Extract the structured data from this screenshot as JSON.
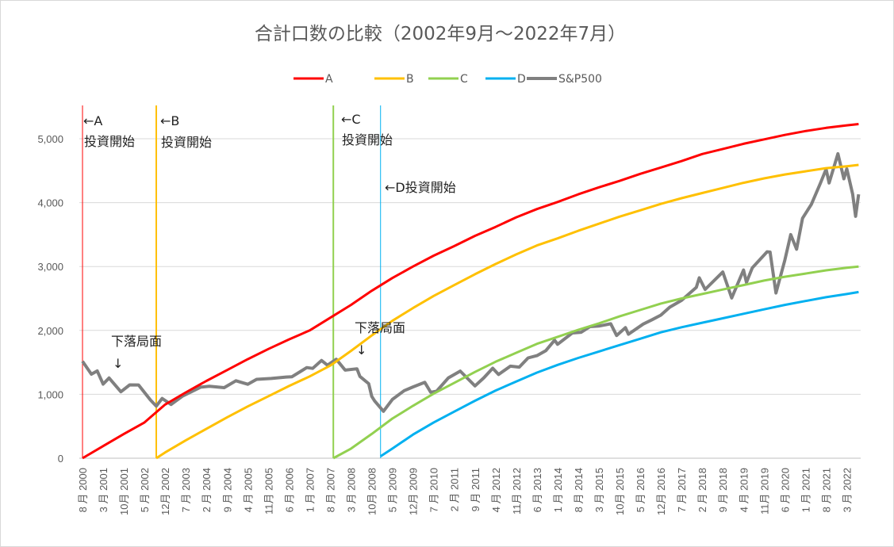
{
  "chart_data": {
    "type": "line",
    "title": "合計口数の比較（2002年9月～2022年7月）",
    "xlabel": "",
    "ylabel": "",
    "ylim": [
      0,
      5500
    ],
    "yticks": [
      0,
      1000,
      2000,
      3000,
      4000,
      5000
    ],
    "ytick_labels": [
      "0",
      "1,000",
      "2,000",
      "3,000",
      "4,000",
      "5,000"
    ],
    "x_start": "2000-08",
    "x_end": "2022-07",
    "xtick_labels": [
      "8 月 2000",
      "3 月 2001",
      "10月 2001",
      "5 月 2002",
      "12月 2002",
      "7 月 2003",
      "2 月 2004",
      "9 月 2004",
      "4 月 2005",
      "11月 2005",
      "6 月 2006",
      "1 月 2007",
      "8 月 2007",
      "3 月 2008",
      "10月 2008",
      "5 月 2009",
      "12月 2009",
      "7 月 2010",
      "2 月 2011",
      "9 月 2011",
      "4 月 2012",
      "11月 2012",
      "6 月 2013",
      "1 月 2014",
      "8 月 2014",
      "3 月 2015",
      "10月 2015",
      "5 月 2016",
      "12月 2016",
      "7 月 2017",
      "2 月 2018",
      "9 月 2018",
      "4 月 2019",
      "11月 2019",
      "6 月 2020",
      "1 月 2021",
      "8 月 2021",
      "3 月 2022"
    ],
    "grid": true,
    "legend_position": "top",
    "series": [
      {
        "name": "A",
        "color": "#FF0000",
        "start": "2000-08",
        "points": [
          [
            "2000-08",
            0
          ],
          [
            "2001-03",
            190
          ],
          [
            "2001-10",
            380
          ],
          [
            "2002-05",
            560
          ],
          [
            "2002-12",
            840
          ],
          [
            "2003-07",
            1030
          ],
          [
            "2004-02",
            1210
          ],
          [
            "2004-09",
            1380
          ],
          [
            "2005-04",
            1550
          ],
          [
            "2005-11",
            1710
          ],
          [
            "2006-06",
            1860
          ],
          [
            "2007-01",
            2000
          ],
          [
            "2007-08",
            2200
          ],
          [
            "2008-03",
            2400
          ],
          [
            "2008-10",
            2620
          ],
          [
            "2009-05",
            2820
          ],
          [
            "2009-12",
            3000
          ],
          [
            "2010-07",
            3170
          ],
          [
            "2011-02",
            3320
          ],
          [
            "2011-09",
            3480
          ],
          [
            "2012-04",
            3620
          ],
          [
            "2012-11",
            3770
          ],
          [
            "2013-06",
            3900
          ],
          [
            "2014-01",
            4010
          ],
          [
            "2014-08",
            4130
          ],
          [
            "2015-03",
            4240
          ],
          [
            "2015-10",
            4340
          ],
          [
            "2016-05",
            4450
          ],
          [
            "2016-12",
            4550
          ],
          [
            "2017-07",
            4650
          ],
          [
            "2018-02",
            4760
          ],
          [
            "2018-09",
            4840
          ],
          [
            "2019-04",
            4920
          ],
          [
            "2019-11",
            4990
          ],
          [
            "2020-06",
            5060
          ],
          [
            "2021-01",
            5120
          ],
          [
            "2021-08",
            5170
          ],
          [
            "2022-03",
            5210
          ],
          [
            "2022-07",
            5230
          ]
        ]
      },
      {
        "name": "B",
        "color": "#FFC000",
        "start": "2002-09",
        "points": [
          [
            "2002-09",
            0
          ],
          [
            "2002-12",
            90
          ],
          [
            "2003-07",
            280
          ],
          [
            "2004-02",
            460
          ],
          [
            "2004-09",
            640
          ],
          [
            "2005-04",
            810
          ],
          [
            "2005-11",
            970
          ],
          [
            "2006-06",
            1130
          ],
          [
            "2007-01",
            1280
          ],
          [
            "2007-08",
            1450
          ],
          [
            "2008-03",
            1680
          ],
          [
            "2008-10",
            1920
          ],
          [
            "2009-05",
            2150
          ],
          [
            "2009-12",
            2350
          ],
          [
            "2010-07",
            2540
          ],
          [
            "2011-02",
            2710
          ],
          [
            "2011-09",
            2880
          ],
          [
            "2012-04",
            3040
          ],
          [
            "2012-11",
            3190
          ],
          [
            "2013-06",
            3330
          ],
          [
            "2014-01",
            3440
          ],
          [
            "2014-08",
            3560
          ],
          [
            "2015-03",
            3670
          ],
          [
            "2015-10",
            3780
          ],
          [
            "2016-05",
            3880
          ],
          [
            "2016-12",
            3980
          ],
          [
            "2017-07",
            4070
          ],
          [
            "2018-02",
            4150
          ],
          [
            "2018-09",
            4230
          ],
          [
            "2019-04",
            4310
          ],
          [
            "2019-11",
            4380
          ],
          [
            "2020-06",
            4440
          ],
          [
            "2021-01",
            4490
          ],
          [
            "2021-08",
            4540
          ],
          [
            "2022-03",
            4570
          ],
          [
            "2022-07",
            4590
          ]
        ]
      },
      {
        "name": "C",
        "color": "#92D050",
        "start": "2007-09",
        "points": [
          [
            "2007-09",
            0
          ],
          [
            "2008-03",
            150
          ],
          [
            "2008-10",
            380
          ],
          [
            "2009-05",
            620
          ],
          [
            "2009-12",
            820
          ],
          [
            "2010-07",
            1010
          ],
          [
            "2011-02",
            1180
          ],
          [
            "2011-09",
            1350
          ],
          [
            "2012-04",
            1510
          ],
          [
            "2012-11",
            1650
          ],
          [
            "2013-06",
            1790
          ],
          [
            "2014-01",
            1900
          ],
          [
            "2014-08",
            2010
          ],
          [
            "2015-03",
            2110
          ],
          [
            "2015-10",
            2220
          ],
          [
            "2016-05",
            2320
          ],
          [
            "2016-12",
            2420
          ],
          [
            "2017-07",
            2500
          ],
          [
            "2018-02",
            2570
          ],
          [
            "2018-09",
            2640
          ],
          [
            "2019-04",
            2710
          ],
          [
            "2019-11",
            2780
          ],
          [
            "2020-06",
            2840
          ],
          [
            "2021-01",
            2890
          ],
          [
            "2021-08",
            2940
          ],
          [
            "2022-03",
            2980
          ],
          [
            "2022-07",
            3000
          ]
        ]
      },
      {
        "name": "D",
        "color": "#00B0F0",
        "start": "2009-01",
        "points": [
          [
            "2009-01",
            30
          ],
          [
            "2009-05",
            150
          ],
          [
            "2009-12",
            370
          ],
          [
            "2010-07",
            560
          ],
          [
            "2011-02",
            730
          ],
          [
            "2011-09",
            900
          ],
          [
            "2012-04",
            1060
          ],
          [
            "2012-11",
            1200
          ],
          [
            "2013-06",
            1340
          ],
          [
            "2014-01",
            1460
          ],
          [
            "2014-08",
            1570
          ],
          [
            "2015-03",
            1670
          ],
          [
            "2015-10",
            1770
          ],
          [
            "2016-05",
            1870
          ],
          [
            "2016-12",
            1970
          ],
          [
            "2017-07",
            2050
          ],
          [
            "2018-02",
            2120
          ],
          [
            "2018-09",
            2190
          ],
          [
            "2019-04",
            2260
          ],
          [
            "2019-11",
            2330
          ],
          [
            "2020-06",
            2400
          ],
          [
            "2021-01",
            2460
          ],
          [
            "2021-08",
            2520
          ],
          [
            "2022-03",
            2570
          ],
          [
            "2022-07",
            2600
          ]
        ]
      },
      {
        "name": "S&P500",
        "color": "#808080",
        "points": [
          [
            "2000-08",
            1517
          ],
          [
            "2000-11",
            1315
          ],
          [
            "2001-01",
            1366
          ],
          [
            "2001-03",
            1160
          ],
          [
            "2001-05",
            1255
          ],
          [
            "2001-09",
            1040
          ],
          [
            "2001-12",
            1148
          ],
          [
            "2002-03",
            1147
          ],
          [
            "2002-07",
            912
          ],
          [
            "2002-09",
            815
          ],
          [
            "2002-11",
            936
          ],
          [
            "2003-02",
            841
          ],
          [
            "2003-06",
            975
          ],
          [
            "2003-12",
            1112
          ],
          [
            "2004-03",
            1126
          ],
          [
            "2004-08",
            1104
          ],
          [
            "2004-12",
            1212
          ],
          [
            "2005-04",
            1157
          ],
          [
            "2005-07",
            1234
          ],
          [
            "2005-12",
            1248
          ],
          [
            "2006-05",
            1270
          ],
          [
            "2006-07",
            1276
          ],
          [
            "2006-12",
            1418
          ],
          [
            "2007-02",
            1406
          ],
          [
            "2007-05",
            1530
          ],
          [
            "2007-07",
            1455
          ],
          [
            "2007-10",
            1549
          ],
          [
            "2008-01",
            1378
          ],
          [
            "2008-05",
            1400
          ],
          [
            "2008-06",
            1280
          ],
          [
            "2008-09",
            1166
          ],
          [
            "2008-10",
            969
          ],
          [
            "2008-11",
            896
          ],
          [
            "2009-02",
            735
          ],
          [
            "2009-05",
            919
          ],
          [
            "2009-09",
            1057
          ],
          [
            "2009-12",
            1115
          ],
          [
            "2010-04",
            1187
          ],
          [
            "2010-06",
            1031
          ],
          [
            "2010-08",
            1049
          ],
          [
            "2010-12",
            1258
          ],
          [
            "2011-04",
            1364
          ],
          [
            "2011-09",
            1131
          ],
          [
            "2011-12",
            1258
          ],
          [
            "2012-03",
            1408
          ],
          [
            "2012-05",
            1310
          ],
          [
            "2012-09",
            1441
          ],
          [
            "2012-12",
            1426
          ],
          [
            "2013-03",
            1569
          ],
          [
            "2013-06",
            1606
          ],
          [
            "2013-09",
            1682
          ],
          [
            "2013-12",
            1848
          ],
          [
            "2014-01",
            1783
          ],
          [
            "2014-06",
            1960
          ],
          [
            "2014-09",
            1972
          ],
          [
            "2014-12",
            2059
          ],
          [
            "2015-03",
            2068
          ],
          [
            "2015-07",
            2104
          ],
          [
            "2015-09",
            1920
          ],
          [
            "2015-12",
            2044
          ],
          [
            "2016-01",
            1940
          ],
          [
            "2016-06",
            2099
          ],
          [
            "2016-09",
            2168
          ],
          [
            "2016-12",
            2239
          ],
          [
            "2017-03",
            2363
          ],
          [
            "2017-07",
            2470
          ],
          [
            "2017-12",
            2674
          ],
          [
            "2018-01",
            2824
          ],
          [
            "2018-03",
            2641
          ],
          [
            "2018-09",
            2914
          ],
          [
            "2018-12",
            2507
          ],
          [
            "2019-04",
            2946
          ],
          [
            "2019-05",
            2752
          ],
          [
            "2019-07",
            2980
          ],
          [
            "2019-12",
            3231
          ],
          [
            "2020-01",
            3226
          ],
          [
            "2020-03",
            2585
          ],
          [
            "2020-06",
            3100
          ],
          [
            "2020-08",
            3500
          ],
          [
            "2020-10",
            3270
          ],
          [
            "2020-12",
            3756
          ],
          [
            "2021-03",
            3973
          ],
          [
            "2021-06",
            4298
          ],
          [
            "2021-08",
            4523
          ],
          [
            "2021-09",
            4308
          ],
          [
            "2021-12",
            4766
          ],
          [
            "2022-02",
            4374
          ],
          [
            "2022-03",
            4530
          ],
          [
            "2022-05",
            4132
          ],
          [
            "2022-06",
            3785
          ],
          [
            "2022-07",
            4130
          ]
        ]
      }
    ],
    "start_markers": [
      {
        "series": "A",
        "date": "2000-08",
        "color": "#FF0000"
      },
      {
        "series": "B",
        "date": "2002-09",
        "color": "#FFC000"
      },
      {
        "series": "C",
        "date": "2007-09",
        "color": "#92D050"
      },
      {
        "series": "D",
        "date": "2009-01",
        "color": "#00B0F0"
      }
    ],
    "annotations": {
      "a_arrow": "←A",
      "a_start": "投資開始",
      "b_arrow": "←B",
      "b_start": "投資開始",
      "c_arrow": "←C",
      "c_start": "投資開始",
      "d_start": "←D投資開始",
      "decline_1": "下落局面",
      "decline_1_arrow": "↓",
      "decline_2": "下落局面",
      "decline_2_arrow": "↓"
    }
  }
}
